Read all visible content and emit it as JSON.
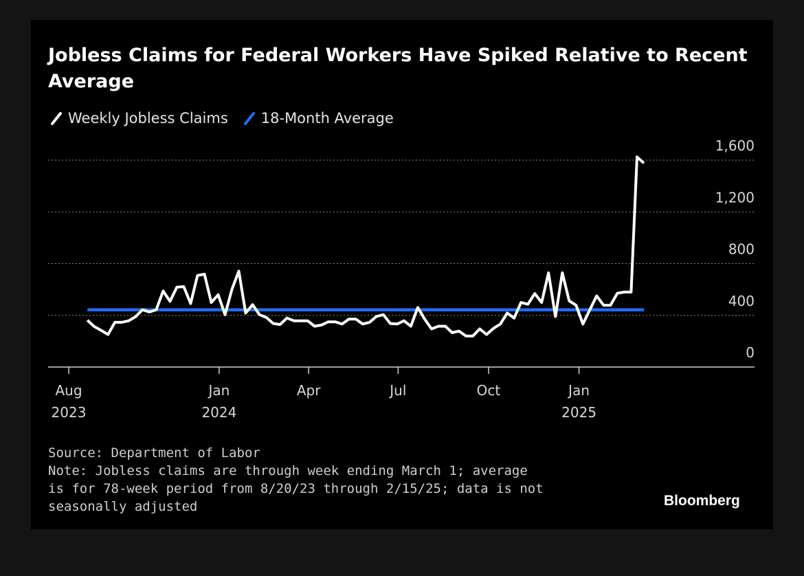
{
  "chart_data": {
    "type": "line",
    "title": "Jobless Claims for Federal Workers Have Spiked Relative to Recent Average",
    "legend_position": "top-left",
    "grid": true,
    "x_tick_labels": [
      {
        "month": "Aug",
        "year": "2023",
        "date": "2023-08-01"
      },
      {
        "month": "Jan",
        "year": "2024",
        "date": "2024-01-01"
      },
      {
        "month": "Apr",
        "year": "",
        "date": "2024-04-01"
      },
      {
        "month": "Jul",
        "year": "",
        "date": "2024-07-01"
      },
      {
        "month": "Oct",
        "year": "",
        "date": "2024-10-01"
      },
      {
        "month": "Jan",
        "year": "2025",
        "date": "2025-01-01"
      }
    ],
    "y_ticks": [
      0,
      400,
      800,
      1200,
      1600
    ],
    "y_tick_labels": [
      "0",
      "400",
      "800",
      "1,200",
      "1,600"
    ],
    "ylim": [
      0,
      1600
    ],
    "xlim": [
      "2023-08-01",
      "2025-04-28"
    ],
    "series": [
      {
        "name": "Weekly Jobless Claims",
        "color": "#ffffff",
        "points": [
          {
            "x": "2023-08-20",
            "y": 362
          },
          {
            "x": "2023-08-27",
            "y": 313
          },
          {
            "x": "2023-09-03",
            "y": 284
          },
          {
            "x": "2023-09-10",
            "y": 252
          },
          {
            "x": "2023-09-17",
            "y": 346
          },
          {
            "x": "2023-09-24",
            "y": 346
          },
          {
            "x": "2023-10-01",
            "y": 358
          },
          {
            "x": "2023-10-08",
            "y": 389
          },
          {
            "x": "2023-10-15",
            "y": 443
          },
          {
            "x": "2023-10-22",
            "y": 426
          },
          {
            "x": "2023-10-29",
            "y": 443
          },
          {
            "x": "2023-11-05",
            "y": 588
          },
          {
            "x": "2023-11-12",
            "y": 508
          },
          {
            "x": "2023-11-19",
            "y": 618
          },
          {
            "x": "2023-11-26",
            "y": 622
          },
          {
            "x": "2023-12-03",
            "y": 491
          },
          {
            "x": "2023-12-10",
            "y": 708
          },
          {
            "x": "2023-12-17",
            "y": 718
          },
          {
            "x": "2023-12-24",
            "y": 499
          },
          {
            "x": "2023-12-31",
            "y": 559
          },
          {
            "x": "2024-01-07",
            "y": 405
          },
          {
            "x": "2024-01-14",
            "y": 601
          },
          {
            "x": "2024-01-21",
            "y": 742
          },
          {
            "x": "2024-01-28",
            "y": 418
          },
          {
            "x": "2024-02-04",
            "y": 482
          },
          {
            "x": "2024-02-11",
            "y": 405
          },
          {
            "x": "2024-02-18",
            "y": 383
          },
          {
            "x": "2024-02-25",
            "y": 337
          },
          {
            "x": "2024-03-03",
            "y": 329
          },
          {
            "x": "2024-03-10",
            "y": 379
          },
          {
            "x": "2024-03-17",
            "y": 358
          },
          {
            "x": "2024-03-24",
            "y": 358
          },
          {
            "x": "2024-03-31",
            "y": 358
          },
          {
            "x": "2024-04-07",
            "y": 316
          },
          {
            "x": "2024-04-14",
            "y": 325
          },
          {
            "x": "2024-04-21",
            "y": 350
          },
          {
            "x": "2024-04-28",
            "y": 350
          },
          {
            "x": "2024-05-05",
            "y": 333
          },
          {
            "x": "2024-05-12",
            "y": 371
          },
          {
            "x": "2024-05-19",
            "y": 371
          },
          {
            "x": "2024-05-26",
            "y": 333
          },
          {
            "x": "2024-06-02",
            "y": 346
          },
          {
            "x": "2024-06-09",
            "y": 392
          },
          {
            "x": "2024-06-16",
            "y": 405
          },
          {
            "x": "2024-06-23",
            "y": 337
          },
          {
            "x": "2024-06-30",
            "y": 333
          },
          {
            "x": "2024-07-07",
            "y": 358
          },
          {
            "x": "2024-07-14",
            "y": 316
          },
          {
            "x": "2024-07-21",
            "y": 461
          },
          {
            "x": "2024-07-28",
            "y": 371
          },
          {
            "x": "2024-08-04",
            "y": 295
          },
          {
            "x": "2024-08-11",
            "y": 316
          },
          {
            "x": "2024-08-18",
            "y": 316
          },
          {
            "x": "2024-08-25",
            "y": 266
          },
          {
            "x": "2024-09-01",
            "y": 278
          },
          {
            "x": "2024-09-08",
            "y": 240
          },
          {
            "x": "2024-09-15",
            "y": 240
          },
          {
            "x": "2024-09-22",
            "y": 295
          },
          {
            "x": "2024-09-29",
            "y": 252
          },
          {
            "x": "2024-10-06",
            "y": 299
          },
          {
            "x": "2024-10-13",
            "y": 333
          },
          {
            "x": "2024-10-20",
            "y": 418
          },
          {
            "x": "2024-10-27",
            "y": 379
          },
          {
            "x": "2024-11-03",
            "y": 499
          },
          {
            "x": "2024-11-10",
            "y": 486
          },
          {
            "x": "2024-11-17",
            "y": 568
          },
          {
            "x": "2024-11-24",
            "y": 499
          },
          {
            "x": "2024-12-01",
            "y": 729
          },
          {
            "x": "2024-12-08",
            "y": 390
          },
          {
            "x": "2024-12-15",
            "y": 729
          },
          {
            "x": "2024-12-22",
            "y": 512
          },
          {
            "x": "2024-12-29",
            "y": 478
          },
          {
            "x": "2025-01-05",
            "y": 333
          },
          {
            "x": "2025-01-12",
            "y": 443
          },
          {
            "x": "2025-01-19",
            "y": 550
          },
          {
            "x": "2025-01-26",
            "y": 478
          },
          {
            "x": "2025-02-02",
            "y": 478
          },
          {
            "x": "2025-02-09",
            "y": 571
          },
          {
            "x": "2025-02-16",
            "y": 580
          },
          {
            "x": "2025-02-23",
            "y": 580
          },
          {
            "x": "2025-03-01",
            "y": 1625
          },
          {
            "x": "2025-03-08",
            "y": 1577
          }
        ]
      },
      {
        "name": "18-Month Average",
        "color": "#1f6cff",
        "points": [
          {
            "x": "2023-08-20",
            "y": 443
          },
          {
            "x": "2025-03-08",
            "y": 443
          }
        ]
      }
    ]
  },
  "footer": {
    "source": "Source: Department of Labor",
    "note": "Note: Jobless claims are through week ending March 1; average\nis for 78-week period from 8/20/23 through 2/15/25; data is not\nseasonally adjusted"
  },
  "brand": "Bloomberg"
}
